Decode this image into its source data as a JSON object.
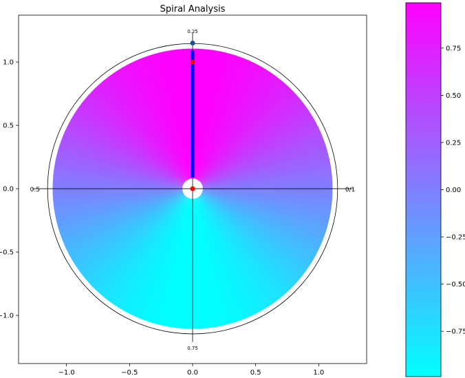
{
  "chart_data": {
    "type": "scatter",
    "title": "Spiral Analysis",
    "xlabel": "",
    "ylabel": "",
    "xlim": [
      -1.38,
      1.38
    ],
    "ylim": [
      -1.38,
      1.37
    ],
    "x_ticks": [
      -1.0,
      -0.5,
      0.0,
      0.5,
      1.0
    ],
    "x_tick_labels": [
      "−1.0",
      "−0.5",
      "0.0",
      "0.5",
      "1.0"
    ],
    "y_ticks": [
      -1.0,
      -0.5,
      0.0,
      0.5,
      1.0
    ],
    "y_tick_labels": [
      "−1.0",
      "−0.5",
      "0.0",
      "0.5",
      "1.0"
    ],
    "grid": false,
    "colormap": {
      "low": "#00ffff",
      "high": "#ff00ff"
    },
    "colorbar": {
      "range": [
        -0.99,
        0.99
      ],
      "ticks": [
        -0.75,
        -0.5,
        -0.25,
        0.0,
        0.25,
        0.5,
        0.75
      ],
      "tick_labels": [
        "−0.75",
        "−0.50",
        "−0.25",
        "0.00",
        "0.25",
        "0.50",
        "0.75"
      ]
    },
    "spiral_disk": {
      "inner_radius": 0.07,
      "outer_radius": 1.11,
      "color_value": "sin(angle)"
    },
    "circle": {
      "center": [
        0,
        0
      ],
      "radius": 1.15
    },
    "axes_lines": {
      "x": 0,
      "y": 0
    },
    "cycle_labels": [
      {
        "text": "0/1",
        "x": 1.25,
        "y": 0.0
      },
      {
        "text": "0.25",
        "x": 0.0,
        "y": 1.24
      },
      {
        "text": "0.5",
        "x": -1.25,
        "y": 0.0
      },
      {
        "text": "0.75",
        "x": 0.0,
        "y": -1.26
      }
    ],
    "vector": {
      "from": [
        0.0,
        0.0
      ],
      "to": [
        0.0,
        1.15
      ],
      "color": "#0000ff"
    },
    "points": [
      {
        "x": 0.0,
        "y": 1.15,
        "color": "#1f4e9a"
      },
      {
        "x": 0.0,
        "y": 1.0,
        "color": "#ff0000"
      },
      {
        "x": 0.0,
        "y": 0.0,
        "color": "#ff0000"
      }
    ]
  }
}
